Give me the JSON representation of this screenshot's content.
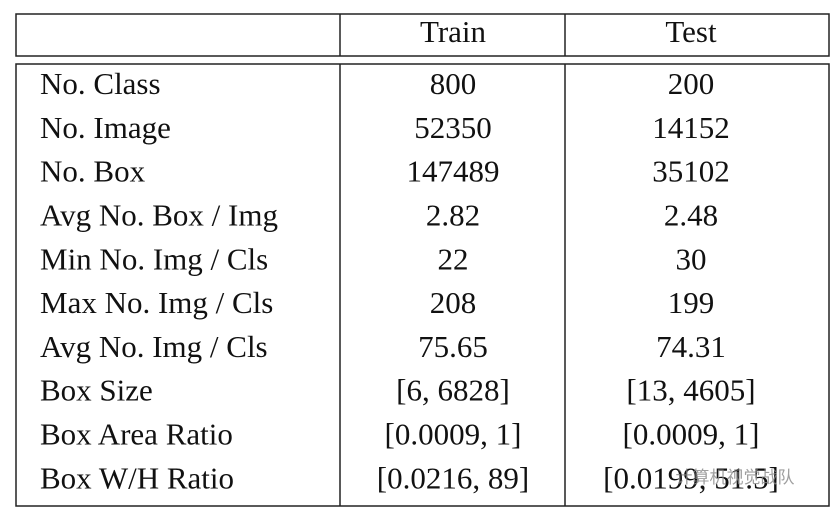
{
  "table": {
    "columns": [
      "Train",
      "Test"
    ],
    "rows": [
      [
        "No. Class",
        800,
        200
      ],
      [
        "No. Image",
        52350,
        14152
      ],
      [
        "No. Box",
        147489,
        35102
      ],
      [
        "Avg No. Box / Img",
        2.82,
        2.48
      ],
      [
        "Min No. Img / Cls",
        22,
        30
      ],
      [
        "Max No. Img / Cls",
        208,
        199
      ],
      [
        "Avg No. Img / Cls",
        75.65,
        74.31
      ],
      [
        "Box Size",
        "[6, 6828]",
        "[13, 4605]"
      ],
      [
        "Box Area Ratio",
        "[0.0009, 1]",
        "[0.0009, 1]"
      ],
      [
        "Box W/H Ratio",
        "[0.0216, 89]",
        "[0.0199, 51.5]"
      ]
    ]
  },
  "watermark": "计算机视觉战队"
}
